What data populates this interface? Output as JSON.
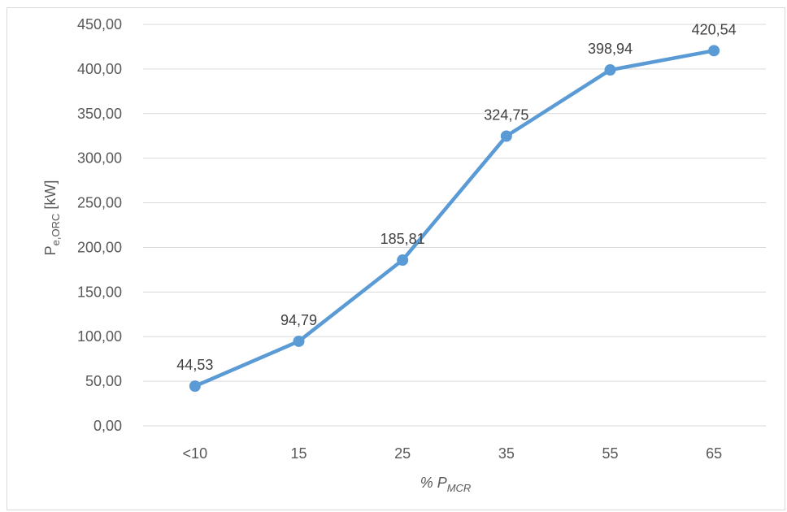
{
  "chart_data": {
    "type": "line",
    "categories": [
      "<10",
      "15",
      "25",
      "35",
      "55",
      "65"
    ],
    "values": [
      44.53,
      94.79,
      185.81,
      324.75,
      398.94,
      420.54
    ],
    "data_labels": [
      "44,53",
      "94,79",
      "185,81",
      "324,75",
      "398,94",
      "420,54"
    ],
    "ylim": [
      0,
      450
    ],
    "y_step": 50,
    "y_tick_labels": [
      "0,00",
      "50,00",
      "100,00",
      "150,00",
      "200,00",
      "250,00",
      "300,00",
      "350,00",
      "400,00",
      "450,00"
    ],
    "xlabel": {
      "main": "% P",
      "sub": "MCR"
    },
    "ylabel": {
      "main": "P",
      "sub": "e,ORC",
      "unit": " [kW]"
    },
    "grid": true,
    "line_color": "#5b9bd5",
    "grid_color": "#d9d9d9"
  }
}
